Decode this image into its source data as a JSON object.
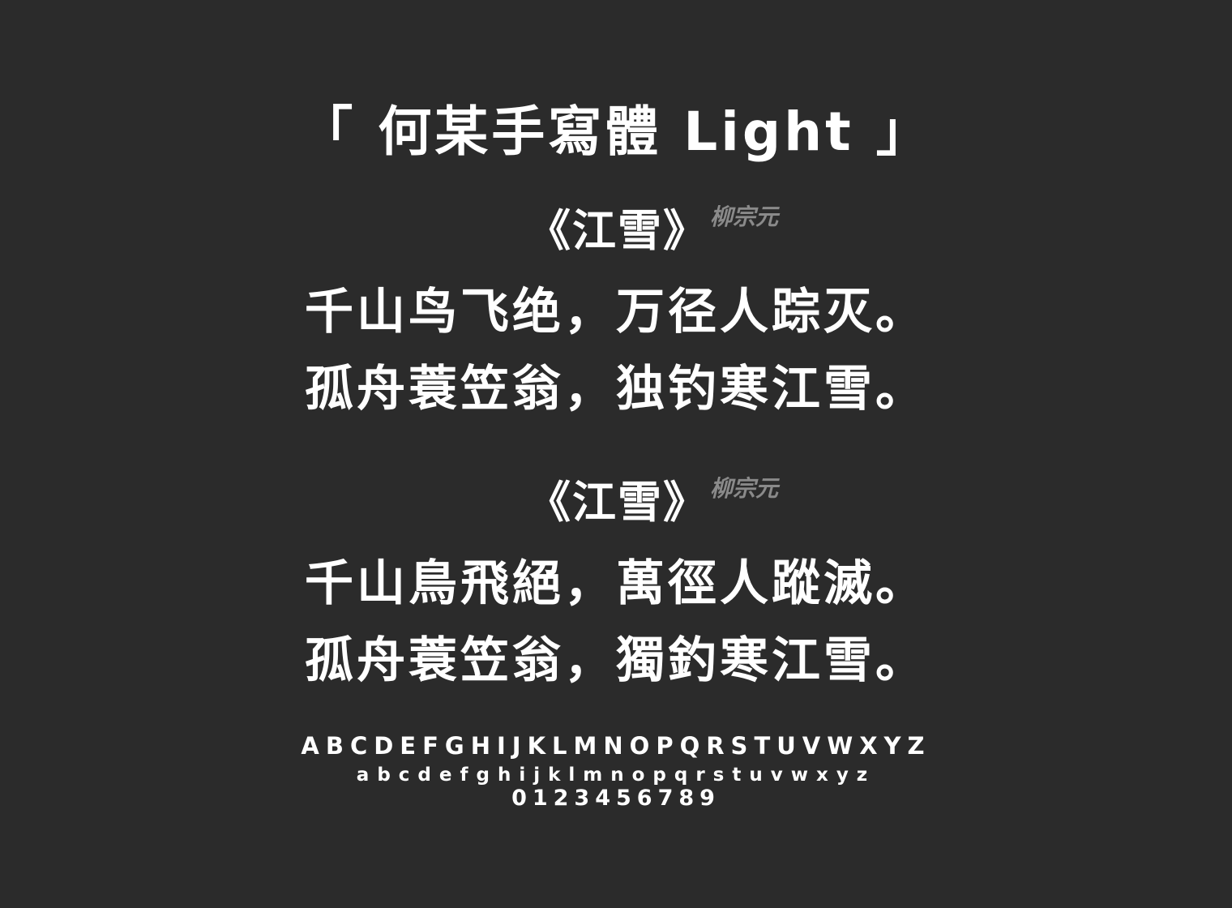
{
  "background_color": "#2b2b2b",
  "text_color": "#ffffff",
  "author_color": "#8a8a8a",
  "title": "「 何某手寫體 Light 」",
  "poems": [
    {
      "title": "《江雪》",
      "author": "柳宗元",
      "lines": [
        "千山鸟飞绝，万径人踪灭。",
        "孤舟蓑笠翁，独钓寒江雪。"
      ]
    },
    {
      "title": "《江雪》",
      "author": "柳宗元",
      "lines": [
        "千山鳥飛絕，萬徑人蹤滅。",
        "孤舟蓑笠翁，獨釣寒江雪。"
      ]
    }
  ],
  "glyphs": {
    "uppercase": "ABCDEFGHIJKLMNOPQRSTUVWXYZ",
    "lowercase": "abcdefghijklmnopqrstuvwxyz",
    "digits": "0123456789"
  }
}
